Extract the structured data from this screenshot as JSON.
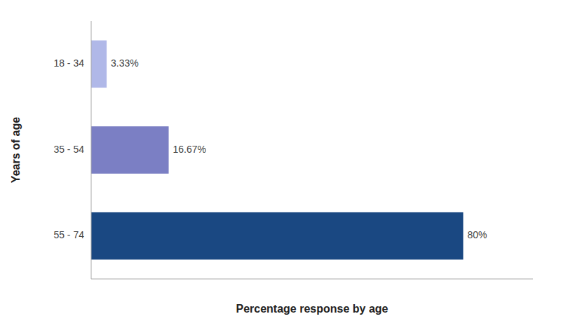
{
  "chart_data": {
    "type": "bar",
    "orientation": "horizontal",
    "categories": [
      "18 - 34",
      "35 - 54",
      "55 - 74"
    ],
    "values": [
      3.33,
      16.67,
      80.0
    ],
    "value_labels": [
      "3.33%",
      "16.67%",
      "80%"
    ],
    "colors": [
      "#b0b8e8",
      "#7b7fc4",
      "#1a4882"
    ],
    "x_label": "Percentage response by age",
    "y_label": "Years of age",
    "xlim": [
      0,
      95
    ],
    "data_labels": true,
    "tick_labels": "y",
    "grid": false
  }
}
